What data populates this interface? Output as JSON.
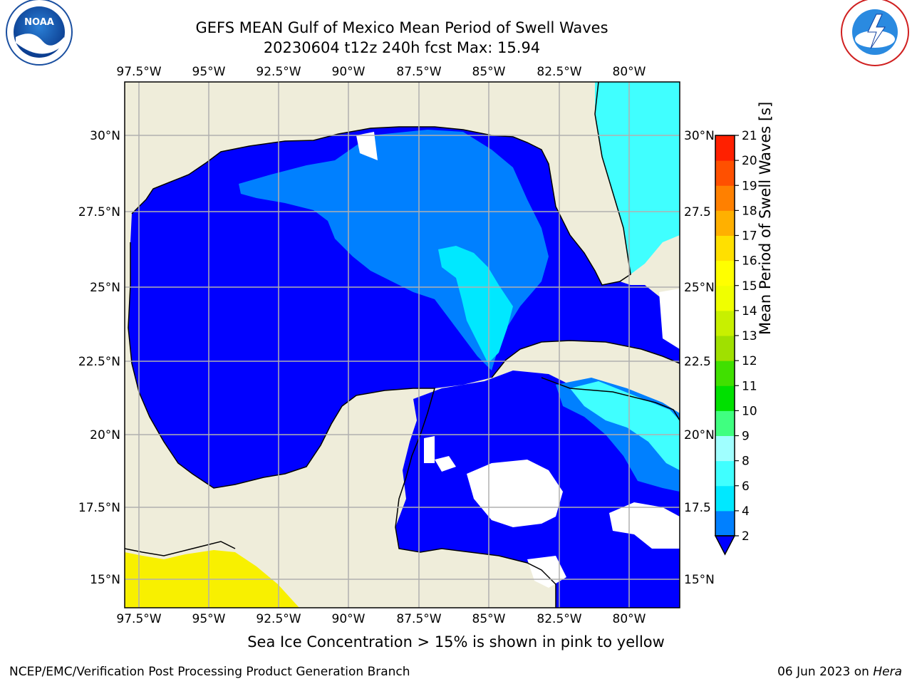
{
  "title": {
    "line1": "GEFS MEAN Gulf of Mexico Mean Period of Swell Waves",
    "line2": "20230604 t12z 240h fcst   Max: 15.94"
  },
  "map": {
    "lon_labels": [
      "97.5°W",
      "95°W",
      "92.5°W",
      "90°W",
      "87.5°W",
      "85°W",
      "82.5°W",
      "80°W"
    ],
    "lat_labels_left": [
      "30°N",
      "27.5°N",
      "25°N",
      "22.5°N",
      "20°N",
      "17.5°N",
      "15°N"
    ],
    "lat_labels_right": [
      "30°N",
      "27.5",
      "25°N",
      "22.5",
      "20°N",
      "17.5",
      "15°N"
    ],
    "land_color": "#efedda",
    "ocean_base_color": "#0000ff"
  },
  "colorbar": {
    "label": "Mean Period of Swell Waves [s]",
    "ticks": [
      "2",
      "4",
      "6",
      "8",
      "9",
      "10",
      "11",
      "12",
      "13",
      "14",
      "15",
      "16",
      "17",
      "18",
      "19",
      "20",
      "21"
    ],
    "colors": [
      "#0080ff",
      "#00e8ff",
      "#40ffff",
      "#a0ffff",
      "#40ff80",
      "#00e000",
      "#40e000",
      "#a0e000",
      "#c8f000",
      "#f0ff00",
      "#ffff00",
      "#ffe000",
      "#ffb000",
      "#ff8000",
      "#ff5000",
      "#ff2000"
    ],
    "under_color": "#0000ff"
  },
  "caption": "Sea Ice Concentration > 15% is shown in pink to yellow",
  "footer": {
    "left": "NCEP/EMC/Verification Post Processing Product Generation Branch",
    "right_date": "06 Jun 2023 on ",
    "right_host": "Hera"
  },
  "logos": {
    "noaa": "NOAA",
    "nws": "NATIONAL WEATHER SERVICE"
  }
}
